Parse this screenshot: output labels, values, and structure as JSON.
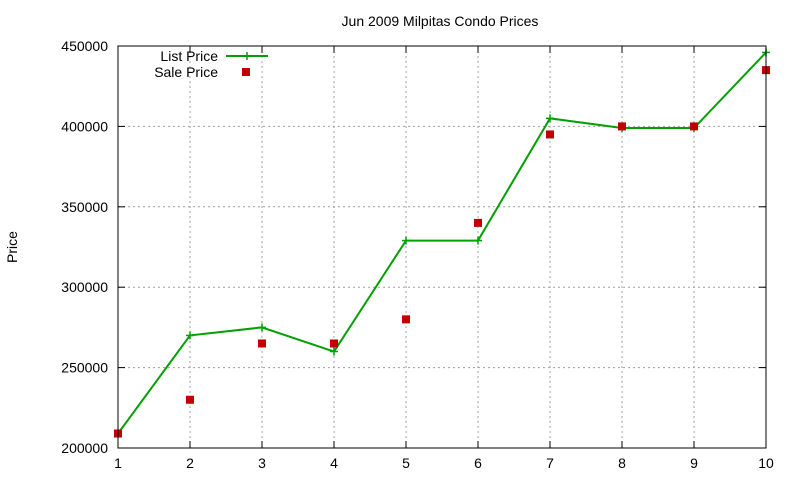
{
  "chart_data": {
    "type": "line",
    "title": "Jun 2009 Milpitas Condo Prices",
    "xlabel": "",
    "ylabel": "Price",
    "xlim": [
      1,
      10
    ],
    "ylim": [
      200000,
      450000
    ],
    "xticks": [
      "1",
      "2",
      "3",
      "4",
      "5",
      "6",
      "7",
      "8",
      "9",
      "10"
    ],
    "yticks": [
      "200000",
      "250000",
      "300000",
      "350000",
      "400000",
      "450000"
    ],
    "grid": true,
    "legend_position": "top-left",
    "x": [
      1,
      2,
      3,
      4,
      5,
      6,
      7,
      8,
      9,
      10
    ],
    "series": [
      {
        "name": "List Price",
        "style": "line-with-plus-markers",
        "color": "#00a000",
        "values": [
          209000,
          270000,
          275000,
          260000,
          329000,
          329000,
          405000,
          399000,
          399000,
          446000
        ]
      },
      {
        "name": "Sale Price",
        "style": "square-markers",
        "color": "#c00000",
        "values": [
          209000,
          230000,
          265000,
          265000,
          280000,
          340000,
          395000,
          400000,
          400000,
          435000
        ]
      }
    ]
  }
}
